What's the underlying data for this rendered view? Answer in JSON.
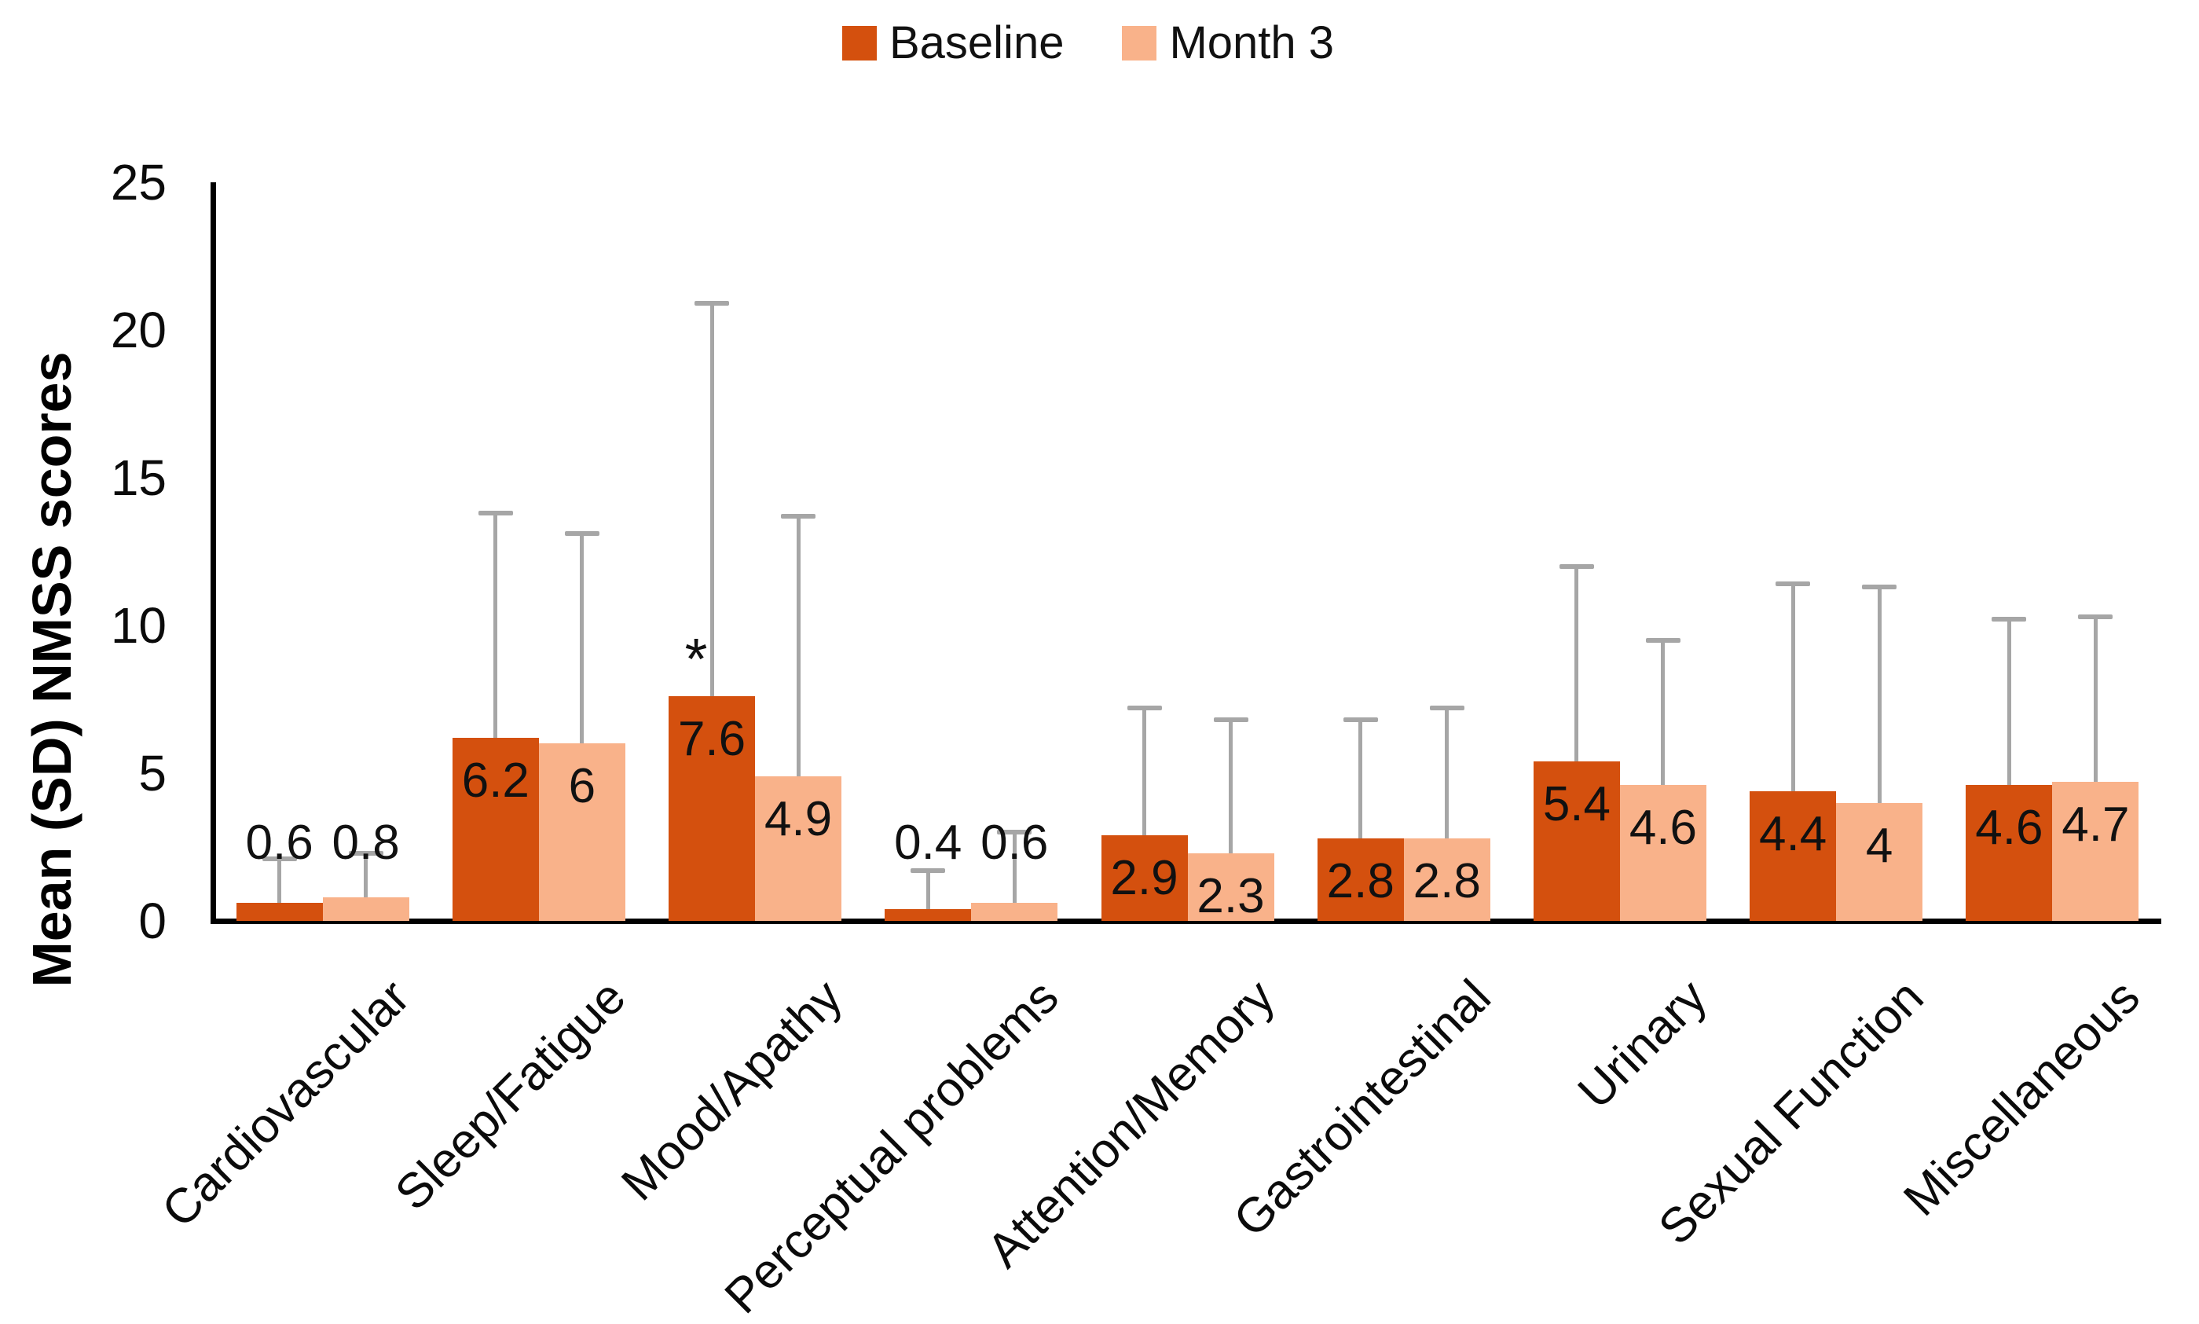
{
  "legend": {
    "items": [
      {
        "label": "Baseline",
        "color": "#D4500E"
      },
      {
        "label": "Month 3",
        "color": "#F9B28A"
      }
    ]
  },
  "chart_data": {
    "type": "bar",
    "title": "",
    "ylabel": "Mean (SD) NMSS scores",
    "xlabel": "",
    "ylim": [
      0,
      25
    ],
    "yticks": [
      0,
      5,
      10,
      15,
      20,
      25
    ],
    "grid": false,
    "legend_position": "top-center",
    "error_bars": "upper SD whiskers",
    "error_bar_color": "#A6A6A6",
    "categories": [
      "Cardiovascular",
      "Sleep/Fatigue",
      "Mood/Apathy",
      "Perceptual problems",
      "Attention/Memory",
      "Gastrointestinal",
      "Urinary",
      "Sexual Function",
      "Miscellaneous"
    ],
    "series": [
      {
        "name": "Baseline",
        "color": "#D4500E",
        "values": [
          0.6,
          6.2,
          7.6,
          0.4,
          2.9,
          2.8,
          5.4,
          4.4,
          4.6
        ],
        "labels": [
          "0.6",
          "6.2",
          "7.6",
          "0.4",
          "2.9",
          "2.8",
          "5.4",
          "4.4",
          "4.6"
        ],
        "sd": [
          1.5,
          7.6,
          13.3,
          1.3,
          4.3,
          4.0,
          6.6,
          7.0,
          5.6
        ]
      },
      {
        "name": "Month 3",
        "color": "#F9B28A",
        "values": [
          0.8,
          6.0,
          4.9,
          0.6,
          2.3,
          2.8,
          4.6,
          4.0,
          4.7
        ],
        "labels": [
          "0.8",
          "6",
          "4.9",
          "0.6",
          "2.3",
          "2.8",
          "4.6",
          "4",
          "4.7"
        ],
        "sd": [
          1.5,
          7.1,
          8.8,
          2.4,
          4.5,
          4.4,
          4.9,
          7.3,
          5.6
        ]
      }
    ],
    "annotations": [
      {
        "text": "*",
        "series": "Baseline",
        "category": "Mood/Apathy",
        "category_index": 2
      }
    ]
  }
}
